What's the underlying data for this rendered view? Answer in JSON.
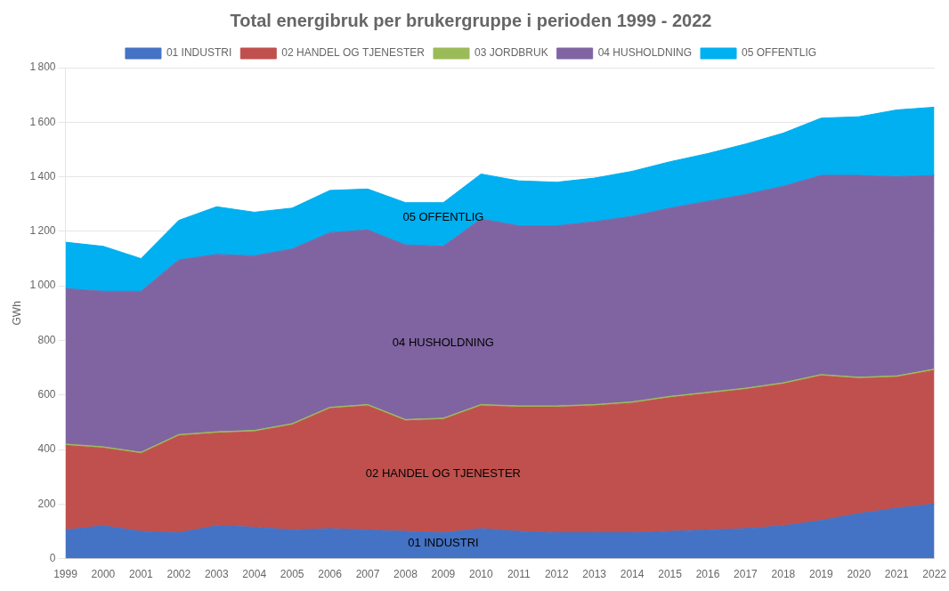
{
  "chart_data": {
    "type": "area",
    "stacked": true,
    "title": "Total energibruk per brukergruppe i perioden 1999 - 2022",
    "y_label": "GWh",
    "x": [
      1999,
      2000,
      2001,
      2002,
      2003,
      2004,
      2005,
      2006,
      2007,
      2008,
      2009,
      2010,
      2011,
      2012,
      2013,
      2014,
      2015,
      2016,
      2017,
      2018,
      2019,
      2020,
      2021,
      2022
    ],
    "series": [
      {
        "name": "01 INDUSTRI",
        "color": "#4472C4",
        "values": [
          105,
          120,
          100,
          95,
          120,
          115,
          105,
          110,
          105,
          100,
          95,
          110,
          100,
          95,
          95,
          95,
          100,
          105,
          110,
          120,
          140,
          165,
          185,
          200
        ]
      },
      {
        "name": "02 HANDEL OG TJENESTER",
        "color": "#C0504D",
        "values": [
          310,
          285,
          285,
          355,
          340,
          350,
          385,
          440,
          455,
          405,
          415,
          450,
          455,
          460,
          465,
          475,
          490,
          500,
          510,
          520,
          530,
          495,
          480,
          490
        ]
      },
      {
        "name": "03 JORDBRUK",
        "color": "#9BBB59",
        "values": [
          5,
          5,
          5,
          5,
          5,
          5,
          5,
          5,
          5,
          5,
          5,
          5,
          5,
          5,
          5,
          5,
          5,
          5,
          5,
          5,
          5,
          5,
          5,
          5
        ]
      },
      {
        "name": "04 HUSHOLDNING",
        "color": "#8064A2",
        "values": [
          570,
          570,
          590,
          640,
          650,
          640,
          640,
          640,
          640,
          640,
          630,
          680,
          660,
          660,
          670,
          680,
          690,
          700,
          710,
          720,
          730,
          740,
          730,
          710
        ]
      },
      {
        "name": "05 OFFENTLIG",
        "color": "#00B0F0",
        "values": [
          170,
          165,
          120,
          145,
          175,
          160,
          150,
          155,
          150,
          155,
          160,
          165,
          165,
          160,
          160,
          165,
          170,
          175,
          185,
          195,
          210,
          215,
          245,
          250
        ]
      }
    ],
    "xlim": [
      1999,
      2022
    ],
    "xticks": [
      1999,
      2000,
      2001,
      2002,
      2003,
      2004,
      2005,
      2006,
      2007,
      2008,
      2009,
      2010,
      2011,
      2012,
      2013,
      2014,
      2015,
      2016,
      2017,
      2018,
      2019,
      2020,
      2021,
      2022
    ],
    "ylim": [
      0,
      1800
    ],
    "yticks": [
      0,
      200,
      400,
      600,
      800,
      {
        "value": 1000,
        "label": "1 000"
      },
      {
        "value": 1200,
        "label": "1 200"
      },
      {
        "value": 1400,
        "label": "1 400"
      },
      {
        "value": 1600,
        "label": "1 600"
      },
      {
        "value": 1800,
        "label": "1 800"
      }
    ],
    "grid": true,
    "legend": "top",
    "annotations": [
      {
        "text": "01 INDUSTRI",
        "x": 2009,
        "y": 55
      },
      {
        "text": "02 HANDEL OG TJENESTER",
        "x": 2009,
        "y": 310
      },
      {
        "text": "04 HUSHOLDNING",
        "x": 2009,
        "y": 790
      },
      {
        "text": "05 OFFENTLIG",
        "x": 2009,
        "y": 1250
      }
    ]
  }
}
